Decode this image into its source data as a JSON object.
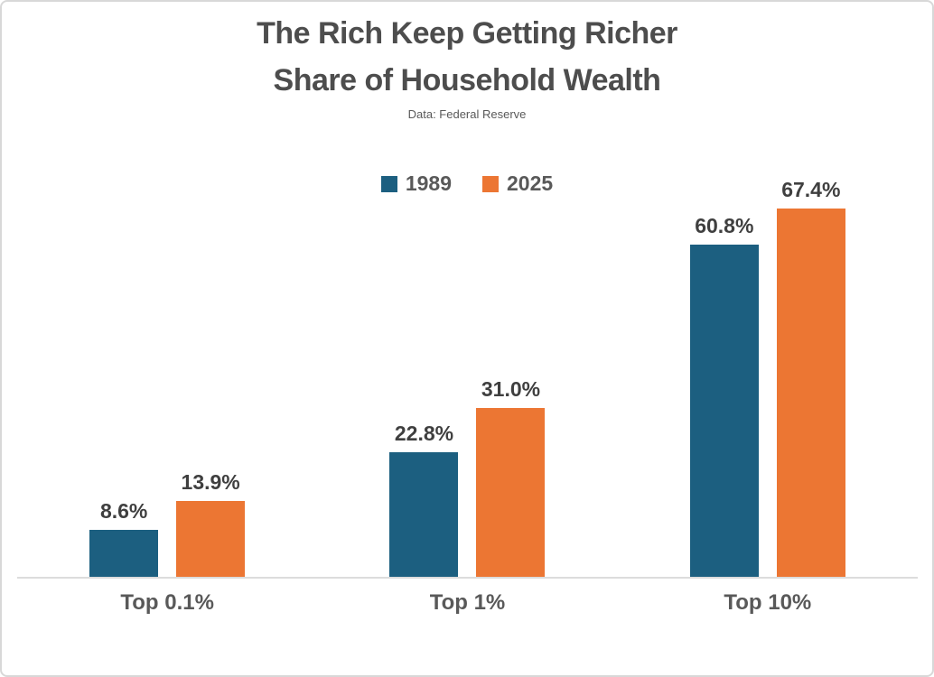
{
  "chart_data": {
    "type": "bar",
    "title": "The Rich Keep Getting Richer",
    "subtitle": "Share of Household Wealth",
    "source_note": "Data: Federal Reserve",
    "categories": [
      "Top 0.1%",
      "Top 1%",
      "Top 10%"
    ],
    "series": [
      {
        "name": "1989",
        "color": "#1C5F80",
        "values": [
          8.6,
          22.8,
          60.8
        ]
      },
      {
        "name": "2025",
        "color": "#EC7633",
        "values": [
          13.9,
          31.0,
          67.4
        ]
      }
    ],
    "value_labels": [
      [
        "8.6%",
        "22.8%",
        "60.8%"
      ],
      [
        "13.9%",
        "31.0%",
        "67.4%"
      ]
    ],
    "value_label_format": "{value}%",
    "ylim": [
      0,
      70
    ],
    "grid": false,
    "y_axis_visible": false,
    "legend_position": "top-center",
    "colors": {
      "axis_line": "#DCDCDC",
      "title_text": "#4D4D4D",
      "value_label_text": "#3F3F3F",
      "category_label_text": "#595959",
      "frame_border": "#D8D8D8",
      "background": "#FFFFFF"
    }
  }
}
